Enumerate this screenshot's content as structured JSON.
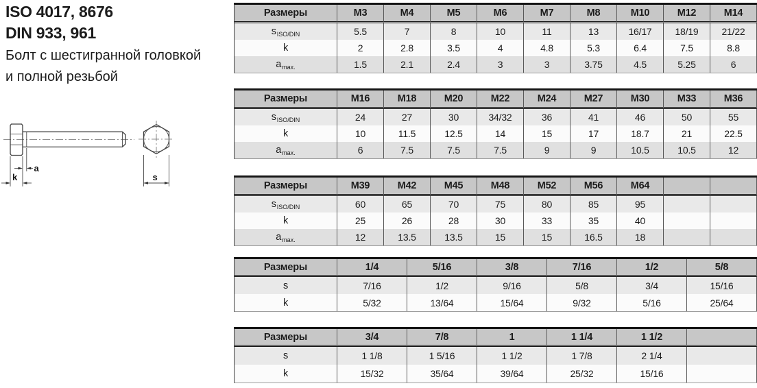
{
  "header": {
    "iso_line": "ISO 4017, 8676",
    "din_line": "DIN 933, 961",
    "desc_line1": "Болт с шестигранной головкой",
    "desc_line2": "и полной резьбой"
  },
  "drawing": {
    "labels": {
      "a": "a",
      "k": "k",
      "s": "s"
    }
  },
  "tables": [
    {
      "header_label": "Размеры",
      "columns": [
        "M3",
        "M4",
        "M5",
        "M6",
        "M7",
        "M8",
        "M10",
        "M12",
        "M14"
      ],
      "rows": [
        {
          "label": "s",
          "sub": "ISO/DIN",
          "values": [
            "5.5",
            "7",
            "8",
            "10",
            "11",
            "13",
            "16/17",
            "18/19",
            "21/22"
          ]
        },
        {
          "label": "k",
          "sub": "",
          "values": [
            "2",
            "2.8",
            "3.5",
            "4",
            "4.8",
            "5.3",
            "6.4",
            "7.5",
            "8.8"
          ]
        },
        {
          "label": "a",
          "sub": "max.",
          "values": [
            "1.5",
            "2.1",
            "2.4",
            "3",
            "3",
            "3.75",
            "4.5",
            "5.25",
            "6"
          ]
        }
      ]
    },
    {
      "header_label": "Размеры",
      "columns": [
        "M16",
        "M18",
        "M20",
        "M22",
        "M24",
        "M27",
        "M30",
        "M33",
        "M36"
      ],
      "rows": [
        {
          "label": "s",
          "sub": "ISO/DIN",
          "values": [
            "24",
            "27",
            "30",
            "34/32",
            "36",
            "41",
            "46",
            "50",
            "55"
          ]
        },
        {
          "label": "k",
          "sub": "",
          "values": [
            "10",
            "11.5",
            "12.5",
            "14",
            "15",
            "17",
            "18.7",
            "21",
            "22.5"
          ]
        },
        {
          "label": "a",
          "sub": "max.",
          "values": [
            "6",
            "7.5",
            "7.5",
            "7.5",
            "9",
            "9",
            "10.5",
            "10.5",
            "12"
          ]
        }
      ]
    },
    {
      "header_label": "Размеры",
      "columns": [
        "M39",
        "M42",
        "M45",
        "M48",
        "M52",
        "M56",
        "M64",
        "",
        ""
      ],
      "rows": [
        {
          "label": "s",
          "sub": "ISO/DIN",
          "values": [
            "60",
            "65",
            "70",
            "75",
            "80",
            "85",
            "95",
            "",
            ""
          ]
        },
        {
          "label": "k",
          "sub": "",
          "values": [
            "25",
            "26",
            "28",
            "30",
            "33",
            "35",
            "40",
            "",
            ""
          ]
        },
        {
          "label": "a",
          "sub": "max.",
          "values": [
            "12",
            "13.5",
            "13.5",
            "15",
            "15",
            "16.5",
            "18",
            "",
            ""
          ]
        }
      ]
    },
    {
      "header_label": "Размеры",
      "columns": [
        "1/4",
        "5/16",
        "3/8",
        "7/16",
        "1/2",
        "5/8"
      ],
      "rows": [
        {
          "label": "s",
          "sub": "",
          "values": [
            "7/16",
            "1/2",
            "9/16",
            "5/8",
            "3/4",
            "15/16"
          ]
        },
        {
          "label": "k",
          "sub": "",
          "values": [
            "5/32",
            "13/64",
            "15/64",
            "9/32",
            "5/16",
            "25/64"
          ]
        }
      ]
    },
    {
      "header_label": "Размеры",
      "columns": [
        "3/4",
        "7/8",
        "1",
        "1 1/4",
        "1 1/2",
        ""
      ],
      "rows": [
        {
          "label": "s",
          "sub": "",
          "values": [
            "1 1/8",
            "1 5/16",
            "1 1/2",
            "1 7/8",
            "2 1/4",
            ""
          ]
        },
        {
          "label": "k",
          "sub": "",
          "values": [
            "15/32",
            "35/64",
            "39/64",
            "25/32",
            "15/16",
            ""
          ]
        }
      ]
    }
  ]
}
